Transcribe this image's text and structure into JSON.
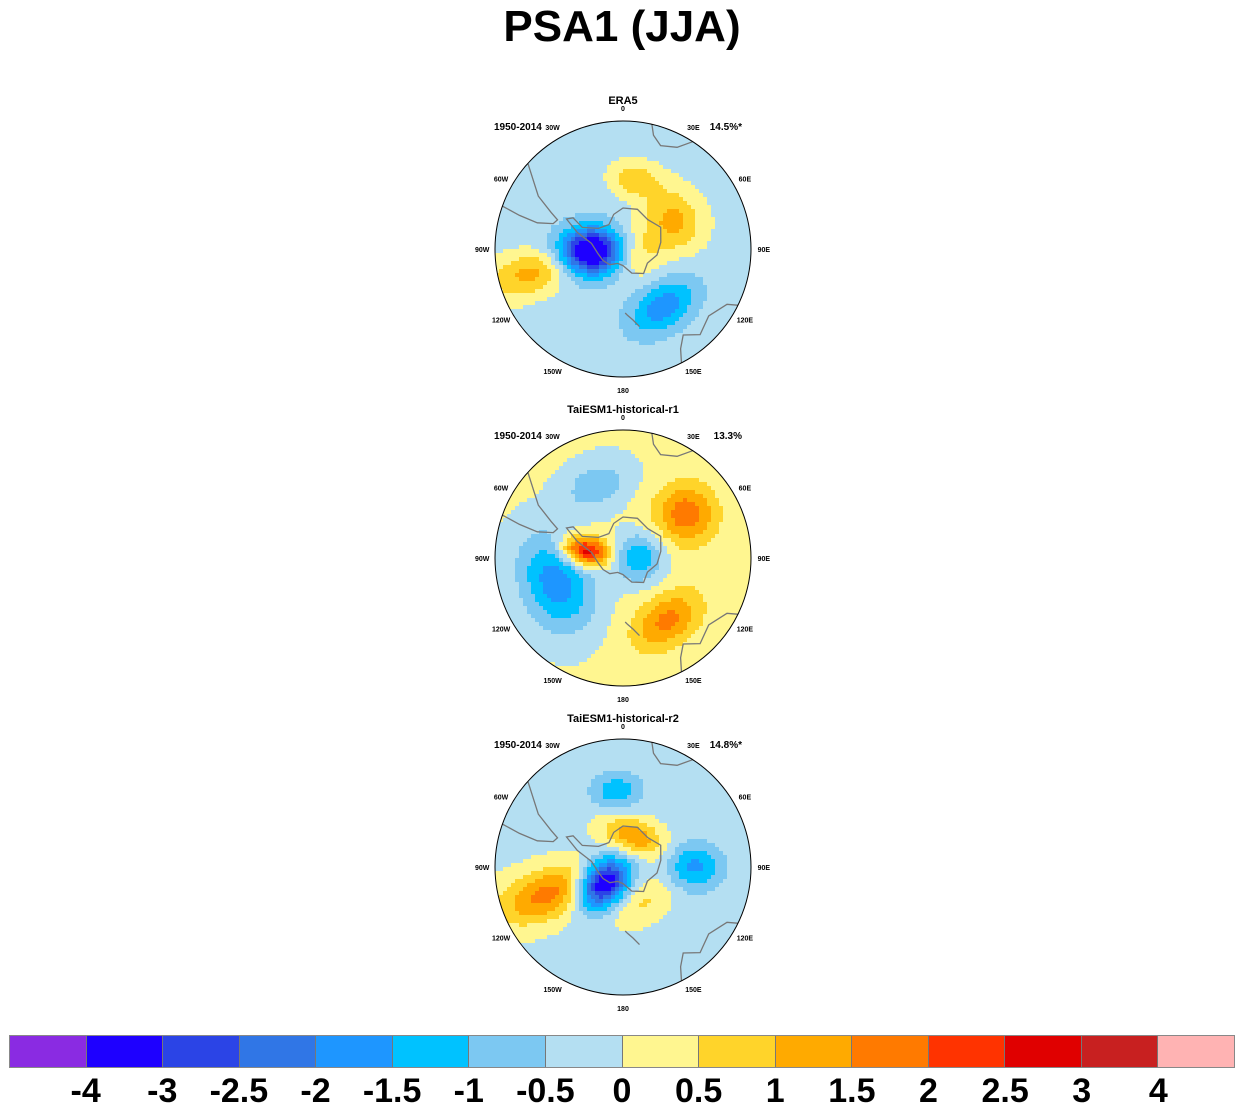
{
  "title": "PSA1 (JJA)",
  "chart_data": {
    "type": "heatmap",
    "projection": "south polar stereographic",
    "panels": [
      {
        "title": "ERA5",
        "period": "1950-2014",
        "variance": "14.5%*",
        "blobs": [
          {
            "lon": -95,
            "r": 0.25,
            "value": -4.0,
            "sx": 0.13,
            "sy": 0.18
          },
          {
            "lon": 60,
            "r": 0.45,
            "value": 1.4,
            "sx": 0.18,
            "sy": 0.16
          },
          {
            "lon": 145,
            "r": 0.55,
            "value": -1.6,
            "sx": 0.2,
            "sy": 0.13
          },
          {
            "lon": -105,
            "r": 0.72,
            "value": 1.4,
            "sx": 0.12,
            "sy": 0.25
          },
          {
            "lon": 10,
            "r": 0.55,
            "value": 1.1,
            "sx": 0.14,
            "sy": 0.1
          },
          {
            "lon": 110,
            "r": 0.1,
            "value": 1.0,
            "sx": 0.15,
            "sy": 0.15
          }
        ],
        "background": -0.3
      },
      {
        "title": "TaiESM1-historical-r1",
        "period": "1950-2014",
        "variance": "13.3%",
        "blobs": [
          {
            "lon": -80,
            "r": 0.3,
            "value": 3.0,
            "sx": 0.08,
            "sy": 0.13
          },
          {
            "lon": 90,
            "r": 0.12,
            "value": -1.6,
            "sx": 0.14,
            "sy": 0.14
          },
          {
            "lon": -110,
            "r": 0.55,
            "value": -2.0,
            "sx": 0.28,
            "sy": 0.2
          },
          {
            "lon": 55,
            "r": 0.6,
            "value": 1.7,
            "sx": 0.16,
            "sy": 0.16
          },
          {
            "lon": 145,
            "r": 0.6,
            "value": 1.5,
            "sx": 0.2,
            "sy": 0.13
          },
          {
            "lon": -20,
            "r": 0.6,
            "value": -1.0,
            "sx": 0.2,
            "sy": 0.14
          }
        ],
        "background": 0.2
      },
      {
        "title": "TaiESM1-historical-r2",
        "period": "1950-2014",
        "variance": "14.8%*",
        "blobs": [
          {
            "lon": -130,
            "r": 0.2,
            "value": -4.0,
            "sx": 0.12,
            "sy": 0.16
          },
          {
            "lon": -110,
            "r": 0.6,
            "value": 1.9,
            "sx": 0.14,
            "sy": 0.3
          },
          {
            "lon": 20,
            "r": 0.25,
            "value": 1.6,
            "sx": 0.18,
            "sy": 0.1
          },
          {
            "lon": 90,
            "r": 0.55,
            "value": -1.5,
            "sx": 0.13,
            "sy": 0.16
          },
          {
            "lon": -5,
            "r": 0.6,
            "value": -1.2,
            "sx": 0.14,
            "sy": 0.1
          },
          {
            "lon": 150,
            "r": 0.3,
            "value": 0.8,
            "sx": 0.2,
            "sy": 0.12
          }
        ],
        "background": -0.2
      }
    ],
    "colorbar": {
      "labels": [
        "-4",
        "-3",
        "-2.5",
        "-2",
        "-1.5",
        "-1",
        "-0.5",
        "0",
        "0.5",
        "1",
        "1.5",
        "2",
        "2.5",
        "3",
        "4"
      ],
      "colors": [
        "#8a2be2",
        "#1e00ff",
        "#2b44e6",
        "#3076e6",
        "#1e96ff",
        "#00c2ff",
        "#7cc8f2",
        "#b4dff2",
        "#fff690",
        "#ffd42a",
        "#ffaa00",
        "#ff7a00",
        "#ff3300",
        "#e00000",
        "#c82020",
        "#ffb3b3"
      ],
      "bounds": [
        -4,
        -3,
        -2.5,
        -2,
        -1.5,
        -1,
        -0.5,
        0,
        0.5,
        1,
        1.5,
        2,
        2.5,
        3,
        4
      ]
    },
    "lon_labels": [
      "0",
      "30E",
      "60E",
      "90E",
      "120E",
      "150E",
      "180",
      "150W",
      "120W",
      "90W",
      "60W",
      "30W"
    ]
  }
}
